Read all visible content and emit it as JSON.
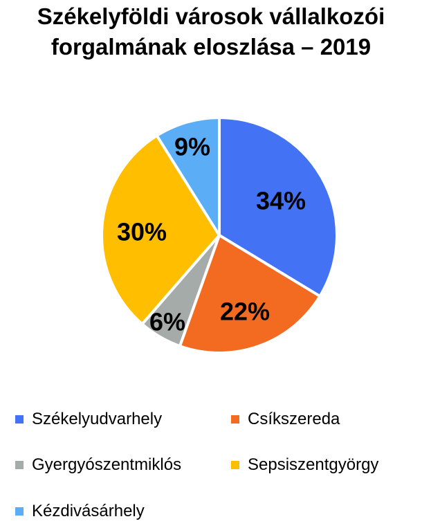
{
  "chart_data": {
    "type": "pie",
    "title_lines": [
      "Székelyföldi városok vállalkozói",
      "forgalmának eloszlása – 2019"
    ],
    "slices": [
      {
        "name": "Székelyudvarhely",
        "value": 34,
        "label": "34%",
        "color": "#4472F4"
      },
      {
        "name": "Csíkszereda",
        "value": 22,
        "label": "22%",
        "color": "#F26B21"
      },
      {
        "name": "Gyergyószentmiklós",
        "value": 6,
        "label": "6%",
        "color": "#A5ABA8"
      },
      {
        "name": "Sepsiszentgyörgy",
        "value": 30,
        "label": "30%",
        "color": "#FFBE00"
      },
      {
        "name": "Kézdivásárhely",
        "value": 9,
        "label": "9%",
        "color": "#5BAEF6"
      }
    ],
    "start_angle": "12 o'clock",
    "direction": "clockwise",
    "legend_position": "bottom"
  }
}
